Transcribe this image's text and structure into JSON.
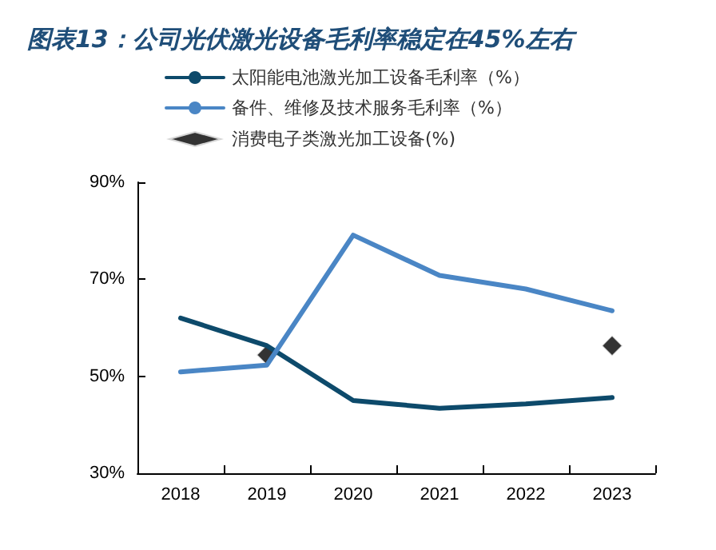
{
  "chart_data": {
    "type": "line",
    "title": "图表13：公司光伏激光设备毛利率稳定在45%左右",
    "categories": [
      "2018",
      "2019",
      "2020",
      "2021",
      "2022",
      "2023"
    ],
    "series": [
      {
        "name": "太阳能电池激光加工设备毛利率（%）",
        "color": "#0d4a6b",
        "values": [
          62,
          56.3,
          45,
          43.4,
          44.3,
          45.6
        ]
      },
      {
        "name": "备件、维修及技术服务毛利率（%）",
        "color": "#4a86c5",
        "values": [
          50.9,
          52.3,
          79.1,
          70.8,
          68,
          63.5
        ]
      },
      {
        "name": "消费电子类激光加工设备(%)",
        "type": "scatter",
        "marker": "diamond",
        "color": "#000000",
        "values": [
          null,
          54.4,
          null,
          null,
          null,
          56.3
        ]
      }
    ],
    "ylim": [
      30,
      90
    ],
    "yticks": [
      {
        "value": 30,
        "label": "30%"
      },
      {
        "value": 50,
        "label": "50%"
      },
      {
        "value": 70,
        "label": "70%"
      },
      {
        "value": 90,
        "label": "90%"
      }
    ],
    "grid": false,
    "legend": "top left",
    "marker": "none",
    "line_style": "solid"
  }
}
